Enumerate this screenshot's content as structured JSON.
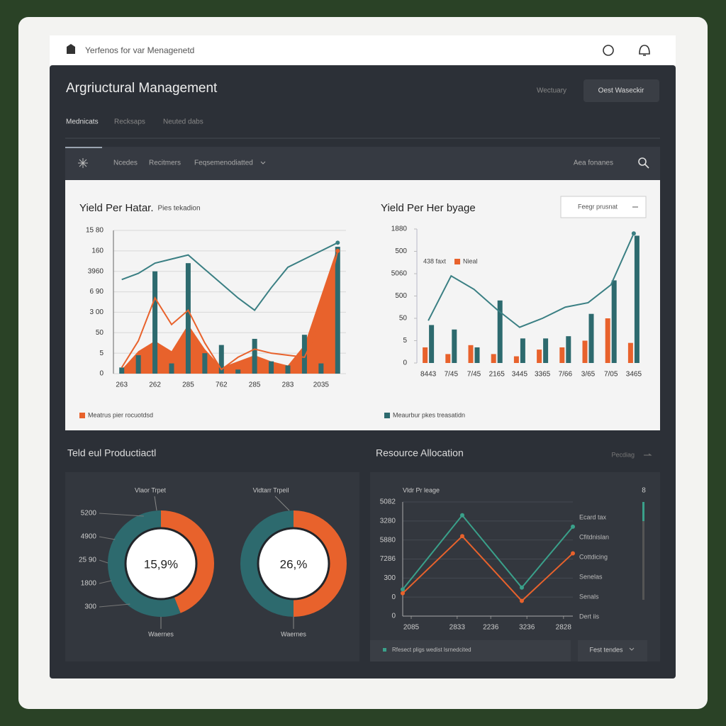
{
  "header": {
    "brand": "Yerfenos for var Menagenetd"
  },
  "page": {
    "title": "Argriuctural Management",
    "status": "Wectuary",
    "button": "Oest Waseckir",
    "tabs": [
      "Mednicats",
      "Recksaps",
      "Neuted dabs"
    ]
  },
  "toolbar": {
    "items": [
      "Ncedes",
      "Recitmers",
      "Feqsemenodiatted"
    ],
    "search": "Aea fonanes"
  },
  "sections": {
    "production": "Teld eul Productiactl",
    "resource": "Resource Allocation",
    "resource_link": "Pecdiag"
  },
  "chart_data": [
    {
      "type": "combo",
      "title": "Yield Per Hatar.",
      "subtitle": "Pies tekadion",
      "categories": [
        "263",
        null,
        "262",
        null,
        "285",
        null,
        "762",
        null,
        "285",
        null,
        "283",
        null,
        "2035",
        null
      ],
      "ylim": [
        0,
        7
      ],
      "yticks": [
        0,
        {
          "value": 1,
          "label": "5"
        },
        {
          "value": 2,
          "label": "50"
        },
        {
          "value": 3,
          "label": "3 00"
        },
        {
          "value": 4,
          "label": "6 90"
        },
        {
          "value": 5,
          "label": "3960"
        },
        {
          "value": 6,
          "label": "160"
        },
        {
          "value": 7,
          "label": "15 80"
        }
      ],
      "grid": true,
      "series": [
        {
          "type": "area",
          "name": "Meatrus pier rocuotdsd",
          "legend": "bottom",
          "color": "#e8622c",
          "values": [
            0.2,
            1.1,
            1.6,
            1.1,
            2.4,
            1.2,
            0.3,
            0.6,
            0.9,
            0.6,
            0.4,
            1.4,
            3.8,
            6.2
          ]
        },
        {
          "type": "bar",
          "color": "#2d6a6e",
          "values": [
            0.3,
            0.9,
            5.0,
            0.5,
            5.4,
            1.0,
            1.4,
            0.2,
            1.7,
            0.6,
            0.4,
            1.9,
            0.5,
            6.2
          ]
        },
        {
          "type": "line",
          "color": "#3a7f83",
          "values": [
            4.6,
            4.9,
            5.4,
            5.6,
            5.8,
            5.1,
            4.4,
            3.7,
            3.1,
            4.2,
            5.2,
            5.6,
            6.0,
            6.4
          ]
        },
        {
          "type": "line",
          "color": "#e8622c",
          "values": [
            0.3,
            1.6,
            3.7,
            2.4,
            3.1,
            1.5,
            0.2,
            0.8,
            1.2,
            1.0,
            0.9,
            0.8,
            2.5,
            6.0
          ]
        }
      ]
    },
    {
      "type": "combo",
      "title": "Yield Per Her byage",
      "control": "Feegr prusnat",
      "categories": [
        "8443",
        "7/45",
        "7/45",
        "2165",
        "3445",
        "3365",
        "7/66",
        "3/65",
        "7/05",
        "3465"
      ],
      "ylim": [
        0,
        6
      ],
      "yticks": [
        0,
        {
          "value": 1,
          "label": "5"
        },
        {
          "value": 2,
          "label": "50"
        },
        {
          "value": 3,
          "label": "500"
        },
        {
          "value": 4,
          "label": "5060"
        },
        {
          "value": 5,
          "label": "500"
        },
        {
          "value": 6,
          "label": "1880"
        }
      ],
      "grid": false,
      "series": [
        {
          "type": "line",
          "name": "438 faxt",
          "legend": "top",
          "color": "#3a7f83",
          "values": [
            1.9,
            3.9,
            3.3,
            2.4,
            1.6,
            2.0,
            2.5,
            2.7,
            3.5,
            5.8
          ]
        },
        {
          "type": "bar",
          "name": "Nieal",
          "legend": "top",
          "color": "#e8622c",
          "values": [
            0.7,
            0.4,
            0.8,
            0.4,
            0.3,
            0.6,
            0.7,
            1.0,
            2.0,
            0.9
          ]
        },
        {
          "type": "bar",
          "name": "Meaurbur pkes treasatidn",
          "legend": "bottom",
          "color": "#2d6a6e",
          "values": [
            1.7,
            1.5,
            0.7,
            2.8,
            1.1,
            1.1,
            1.2,
            2.2,
            3.7,
            5.7
          ]
        }
      ]
    },
    {
      "type": "donut",
      "top_label": "Vlaor Trpet",
      "bottom_label": "Waernes",
      "center_label": "15,9%",
      "values": [
        44,
        56
      ],
      "colors": [
        "#e8622c",
        "#2d6a6e"
      ],
      "side_labels": [
        "5200",
        "4900",
        "25 90",
        "1800",
        "300"
      ]
    },
    {
      "type": "donut",
      "top_label": "Vidtarr Trpeil",
      "bottom_label": "Waernes",
      "center_label": "26,%",
      "values": [
        50,
        50
      ],
      "colors": [
        "#e8622c",
        "#2d6a6e"
      ]
    },
    {
      "type": "line",
      "title": "Vldr Pr leage",
      "x": [
        0,
        1.4,
        2.8,
        4
      ],
      "xlim": [
        0,
        4
      ],
      "xticks": [
        {
          "value": 0.2,
          "label": "2085"
        },
        {
          "value": 1.28,
          "label": "2833"
        },
        {
          "value": 2.07,
          "label": "2236"
        },
        {
          "value": 2.92,
          "label": "3236"
        },
        {
          "value": 3.78,
          "label": "2828"
        }
      ],
      "ylim": [
        0,
        6
      ],
      "yticks": [
        0,
        {
          "value": 1,
          "label": "0"
        },
        {
          "value": 2,
          "label": "300"
        },
        {
          "value": 3,
          "label": "7286"
        },
        {
          "value": 4,
          "label": "5880"
        },
        {
          "value": 5,
          "label": "3280"
        },
        {
          "value": 6,
          "label": "5082"
        }
      ],
      "grid": true,
      "series": [
        {
          "color": "#3aa08a",
          "values": [
            1.4,
            5.3,
            1.5,
            4.7
          ]
        },
        {
          "color": "#e8622c",
          "values": [
            1.2,
            4.2,
            0.8,
            3.3
          ]
        }
      ],
      "side_list": [
        "Ecard tax",
        "Cfitdnislan",
        "Cottdicing",
        "Senelas",
        "Senals",
        "Dert iis"
      ],
      "scroll_label": "8",
      "note": "Rfesect pligs wedist lsrnedcited",
      "button": "Fest tendes"
    }
  ]
}
